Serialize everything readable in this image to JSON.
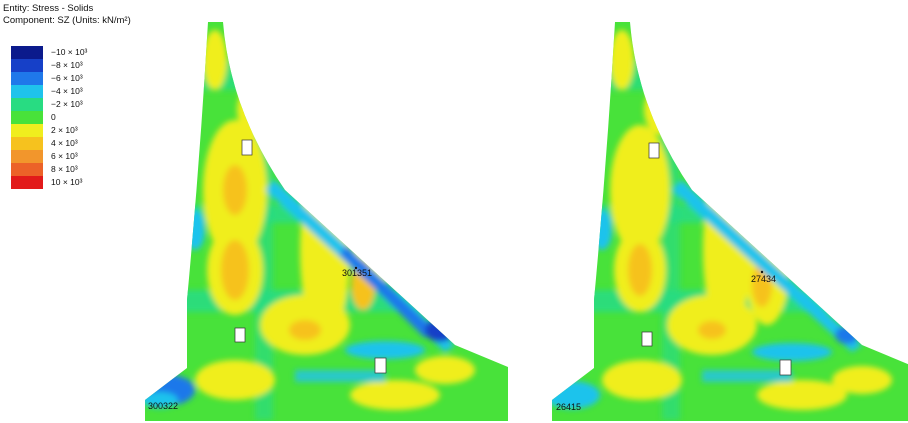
{
  "header": {
    "entity": "Entity: Stress - Solids",
    "component": "Component: SZ (Units: kN/m²)"
  },
  "legend": [
    {
      "label": "−10 × 10³",
      "color": "#0b1a8c"
    },
    {
      "label": "−8 × 10³",
      "color": "#1640c8"
    },
    {
      "label": "−6 × 10³",
      "color": "#1f78ea"
    },
    {
      "label": "−4 × 10³",
      "color": "#1fc3ec"
    },
    {
      "label": "−2 × 10³",
      "color": "#28dc82"
    },
    {
      "label": "0",
      "color": "#48e23a"
    },
    {
      "label": "2 × 10³",
      "color": "#f0ee1e"
    },
    {
      "label": "4 × 10³",
      "color": "#f6c21e"
    },
    {
      "label": "6 × 10³",
      "color": "#f2962c"
    },
    {
      "label": "8 × 10³",
      "color": "#ec6228"
    },
    {
      "label": "10 × 10³",
      "color": "#e21a1a"
    }
  ],
  "sections": [
    {
      "max_point_label": "301351",
      "min_point_label": "300322"
    },
    {
      "max_point_label": "27434",
      "min_point_label": "26415"
    }
  ],
  "colors": {
    "base_green": "#48e23a",
    "light_green": "#28dc82",
    "yellow": "#f0ee1e",
    "orange": "#f6c21e",
    "cyan": "#1fc3ec",
    "blue": "#1f78ea",
    "dark_blue": "#1640c8",
    "background": "#ffffff"
  }
}
